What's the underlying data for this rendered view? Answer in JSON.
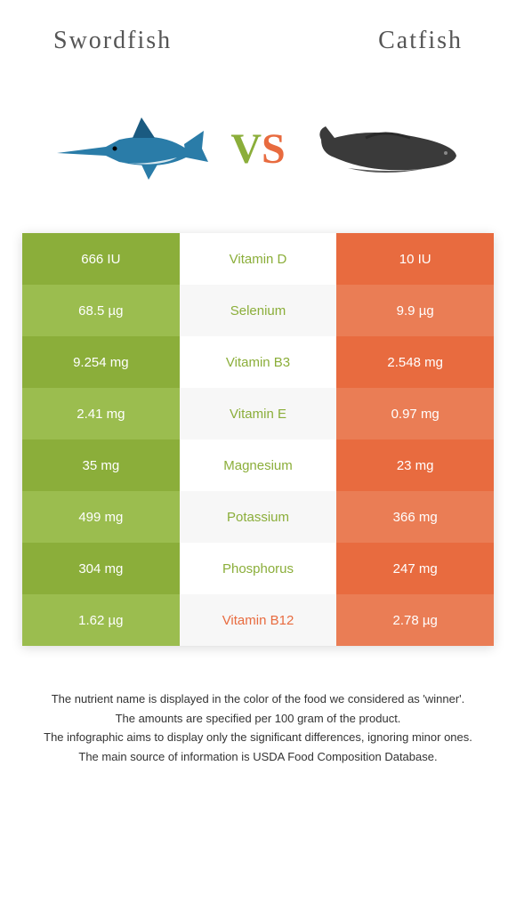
{
  "header": {
    "left_title": "Swordfish",
    "right_title": "Catfish",
    "vs_v": "V",
    "vs_s": "S"
  },
  "colors": {
    "left_primary": "#8bae3a",
    "left_alt": "#9bbd4f",
    "right_primary": "#e86b3f",
    "right_alt": "#ea7d55",
    "mid_bg": "#ffffff",
    "mid_alt": "#f7f7f7"
  },
  "rows": [
    {
      "left": "666 IU",
      "mid": "Vitamin D",
      "right": "10 IU",
      "winner": "left"
    },
    {
      "left": "68.5 µg",
      "mid": "Selenium",
      "right": "9.9 µg",
      "winner": "left"
    },
    {
      "left": "9.254 mg",
      "mid": "Vitamin B3",
      "right": "2.548 mg",
      "winner": "left"
    },
    {
      "left": "2.41 mg",
      "mid": "Vitamin E",
      "right": "0.97 mg",
      "winner": "left"
    },
    {
      "left": "35 mg",
      "mid": "Magnesium",
      "right": "23 mg",
      "winner": "left"
    },
    {
      "left": "499 mg",
      "mid": "Potassium",
      "right": "366 mg",
      "winner": "left"
    },
    {
      "left": "304 mg",
      "mid": "Phosphorus",
      "right": "247 mg",
      "winner": "left"
    },
    {
      "left": "1.62 µg",
      "mid": "Vitamin B12",
      "right": "2.78 µg",
      "winner": "right"
    }
  ],
  "footer": {
    "line1": "The nutrient name is displayed in the color of the food we considered as 'winner'.",
    "line2": "The amounts are specified per 100 gram of the product.",
    "line3": "The infographic aims to display only the significant differences, ignoring minor ones.",
    "line4": "The main source of information is USDA Food Composition Database."
  },
  "fish_left": {
    "body_color": "#2a7ca8",
    "belly_color": "#d8e8f0"
  },
  "fish_right": {
    "body_color": "#3a3a3a"
  }
}
